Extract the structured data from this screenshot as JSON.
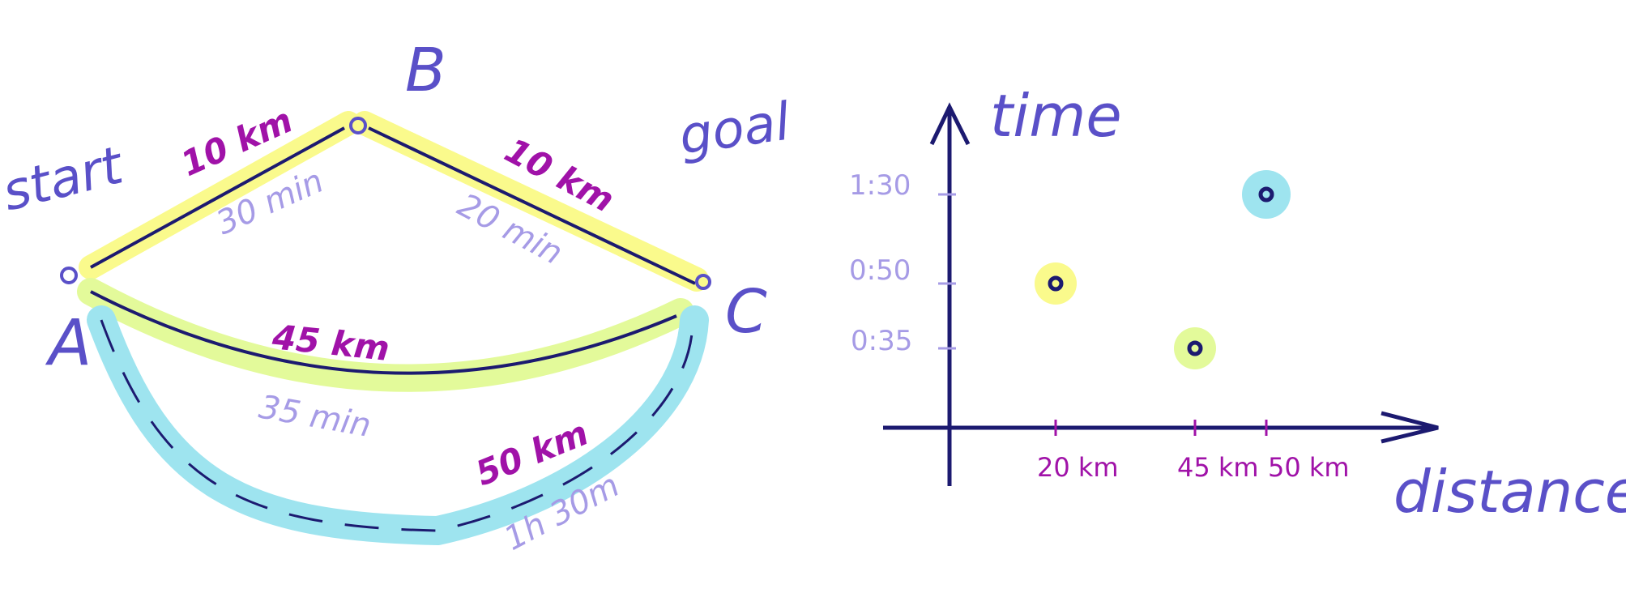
{
  "route_map": {
    "nodes": {
      "start_label": "start",
      "goal_label": "goal",
      "a_label": "A",
      "b_label": "B",
      "c_label": "C"
    },
    "routes": [
      {
        "id": "via-b-leg1",
        "distance": "10 km",
        "time": "30 min",
        "color": "#fafa8c"
      },
      {
        "id": "via-b-leg2",
        "distance": "10 km",
        "time": "20 min",
        "color": "#fafa8c"
      },
      {
        "id": "lower-direct",
        "distance": "45 km",
        "time": "35 min",
        "color": "#e3fa9a"
      },
      {
        "id": "bottom-long",
        "distance": "50 km",
        "time": "1h 30m",
        "color": "#9ee4ef"
      }
    ]
  },
  "chart": {
    "y_axis_label": "time",
    "x_axis_label": "distance",
    "y_ticks": [
      "1:30",
      "0:50",
      "0:35"
    ],
    "x_ticks": [
      "20 km",
      "45 km",
      "50 km"
    ]
  },
  "chart_data": {
    "type": "scatter",
    "xlabel": "distance",
    "ylabel": "time",
    "x_tick_labels": [
      "20 km",
      "45 km",
      "50 km"
    ],
    "y_tick_labels": [
      "1:30",
      "0:50",
      "0:35"
    ],
    "points": [
      {
        "x": 20,
        "y": "0:50",
        "color": "#fafa8c"
      },
      {
        "x": 45,
        "y": "0:35",
        "color": "#e3fa9a"
      },
      {
        "x": 50,
        "y": "1:30",
        "color": "#9ee4ef"
      }
    ],
    "grid": false
  },
  "colors": {
    "ink": "#1c1a70",
    "label": "#5a50c8",
    "distance": "#a012a8",
    "time": "#a69be6",
    "yellow": "#fafa8c",
    "green": "#e3fa9a",
    "cyan": "#9ee4ef"
  }
}
